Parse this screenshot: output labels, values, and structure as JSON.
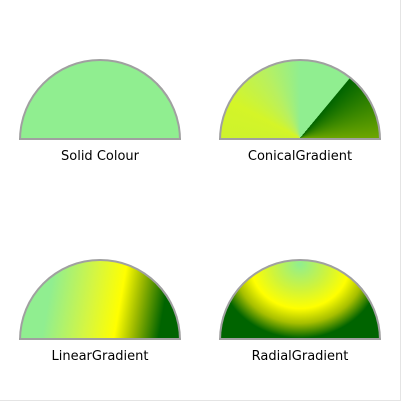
{
  "shapes": [
    {
      "label": "Solid Colour",
      "fill": "#90ee90"
    },
    {
      "label": "ConicalGradient",
      "colors": [
        "#90ee90",
        "#ffff00",
        "#006400"
      ]
    },
    {
      "label": "LinearGradient",
      "colors": [
        "#90ee90",
        "#ffff00",
        "#006400"
      ]
    },
    {
      "label": "RadialGradient",
      "colors": [
        "#90ee90",
        "#ffff00",
        "#006400"
      ]
    }
  ],
  "border_color": "#a0a0a0"
}
